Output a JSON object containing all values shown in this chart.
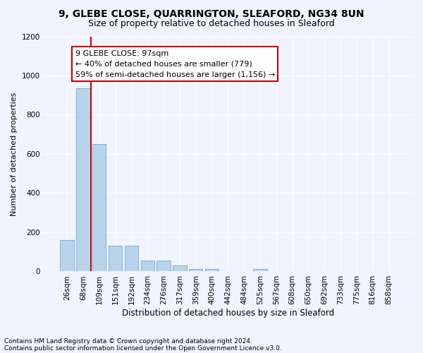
{
  "title_line1": "9, GLEBE CLOSE, QUARRINGTON, SLEAFORD, NG34 8UN",
  "title_line2": "Size of property relative to detached houses in Sleaford",
  "xlabel": "Distribution of detached houses by size in Sleaford",
  "ylabel": "Number of detached properties",
  "bar_color": "#b8d4ec",
  "bar_edge_color": "#7bafd4",
  "bin_labels": [
    "26sqm",
    "68sqm",
    "109sqm",
    "151sqm",
    "192sqm",
    "234sqm",
    "276sqm",
    "317sqm",
    "359sqm",
    "400sqm",
    "442sqm",
    "484sqm",
    "525sqm",
    "567sqm",
    "608sqm",
    "650sqm",
    "692sqm",
    "733sqm",
    "775sqm",
    "816sqm",
    "858sqm"
  ],
  "bar_values": [
    160,
    935,
    650,
    130,
    130,
    57,
    57,
    30,
    13,
    13,
    0,
    0,
    13,
    0,
    0,
    0,
    0,
    0,
    0,
    0,
    0
  ],
  "ylim": [
    0,
    1200
  ],
  "yticks": [
    0,
    200,
    400,
    600,
    800,
    1000,
    1200
  ],
  "vline_x_index": 2,
  "vline_color": "#cc0000",
  "annotation_text": "9 GLEBE CLOSE: 97sqm\n← 40% of detached houses are smaller (779)\n59% of semi-detached houses are larger (1,156) →",
  "annotation_box_facecolor": "#ffffff",
  "annotation_box_edgecolor": "#cc0000",
  "footnote_line1": "Contains HM Land Registry data © Crown copyright and database right 2024.",
  "footnote_line2": "Contains public sector information licensed under the Open Government Licence v3.0.",
  "bg_color": "#f0f4ff",
  "grid_color": "#ffffff",
  "title_fontsize": 10,
  "subtitle_fontsize": 9,
  "ylabel_fontsize": 8,
  "xlabel_fontsize": 8.5,
  "tick_fontsize": 7.5,
  "annot_fontsize": 8,
  "footnote_fontsize": 6.5
}
